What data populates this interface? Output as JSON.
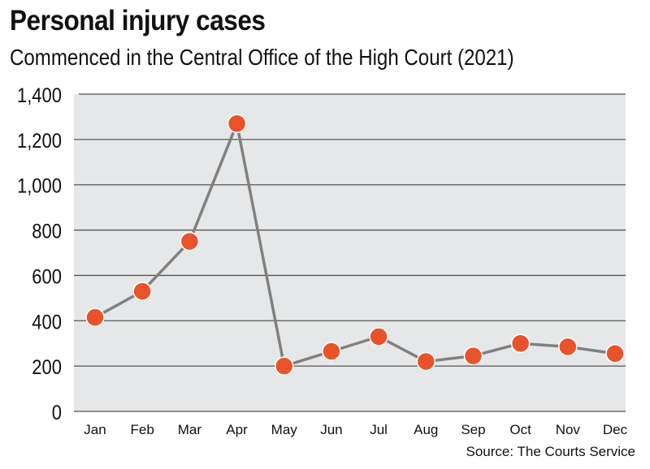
{
  "chart_data": {
    "type": "line",
    "title": "Personal injury cases",
    "subtitle": "Commenced in the Central Office of the High Court (2021)",
    "source": "Source: The Courts Service",
    "categories": [
      "Jan",
      "Feb",
      "Mar",
      "Apr",
      "May",
      "Jun",
      "Jul",
      "Aug",
      "Sep",
      "Oct",
      "Nov",
      "Dec"
    ],
    "values": [
      415,
      530,
      750,
      1270,
      200,
      265,
      330,
      220,
      245,
      300,
      285,
      255
    ],
    "ylim": [
      0,
      1400
    ],
    "yticks": [
      0,
      200,
      400,
      600,
      800,
      1000,
      1200,
      1400
    ],
    "ytick_labels": [
      "0",
      "200",
      "400",
      "600",
      "800",
      "1,000",
      "1,200",
      "1,400"
    ],
    "grid": true,
    "colors": {
      "marker": "#e8532a",
      "line": "#808080",
      "plot_bg": "#e6e7e8",
      "grid": "#555555"
    }
  }
}
